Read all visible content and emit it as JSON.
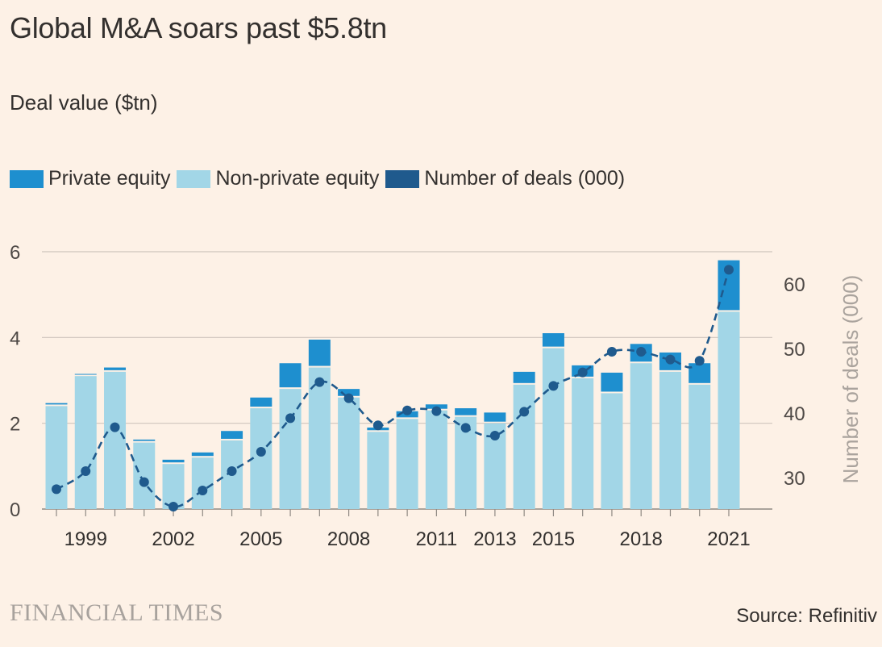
{
  "header": {
    "title": "Global M&A soars past $5.8tn",
    "subtitle": "Deal value ($tn)"
  },
  "legend": [
    {
      "label": "Private equity",
      "color": "#1e8fcf"
    },
    {
      "label": "Non-private equity",
      "color": "#a2d6e7"
    },
    {
      "label": "Number of deals (000)",
      "color": "#1f5a8d"
    }
  ],
  "footer": {
    "brand": "FINANCIAL TIMES",
    "source": "Source: Refinitiv"
  },
  "chart_data": {
    "type": "bar",
    "stacked": true,
    "x": [
      1998,
      1999,
      2000,
      2001,
      2002,
      2003,
      2004,
      2005,
      2006,
      2007,
      2008,
      2009,
      2010,
      2011,
      2012,
      2013,
      2014,
      2015,
      2016,
      2017,
      2018,
      2019,
      2020,
      2021
    ],
    "x_tick_labels": [
      "1999",
      "2002",
      "2005",
      "2008",
      "2011",
      "2013",
      "2015",
      "2018",
      "2021"
    ],
    "x_tick_values": [
      1999,
      2002,
      2005,
      2008,
      2011,
      2013,
      2015,
      2018,
      2021
    ],
    "series": [
      {
        "name": "Non-private equity",
        "values": [
          2.4,
          3.1,
          3.2,
          1.55,
          1.05,
          1.2,
          1.6,
          2.35,
          2.8,
          3.3,
          2.6,
          1.8,
          2.1,
          2.3,
          2.15,
          2.0,
          2.9,
          3.75,
          3.05,
          2.7,
          3.4,
          3.2,
          2.9,
          4.6
        ]
      },
      {
        "name": "Private equity",
        "values": [
          0.07,
          0.05,
          0.1,
          0.07,
          0.1,
          0.12,
          0.22,
          0.25,
          0.6,
          0.65,
          0.2,
          0.1,
          0.18,
          0.14,
          0.2,
          0.25,
          0.3,
          0.35,
          0.3,
          0.48,
          0.45,
          0.45,
          0.5,
          1.2
        ]
      },
      {
        "name": "Number of deals (000)",
        "axis": "right",
        "type": "line",
        "values": [
          28.2,
          31,
          37.8,
          29.3,
          25.5,
          28,
          31,
          34,
          39.2,
          44.8,
          42.3,
          38.1,
          40.4,
          40.3,
          37.7,
          36.5,
          40.2,
          44.2,
          46.3,
          49.5,
          49.5,
          48.3,
          48.1,
          62.2
        ]
      }
    ],
    "y_left": {
      "ticks": [
        0,
        2,
        4,
        6
      ],
      "min": 0,
      "max": 6
    },
    "y_right": {
      "label": "Number of deals (000)",
      "ticks": [
        30,
        40,
        50,
        60
      ],
      "min": 25,
      "max": 65
    }
  }
}
